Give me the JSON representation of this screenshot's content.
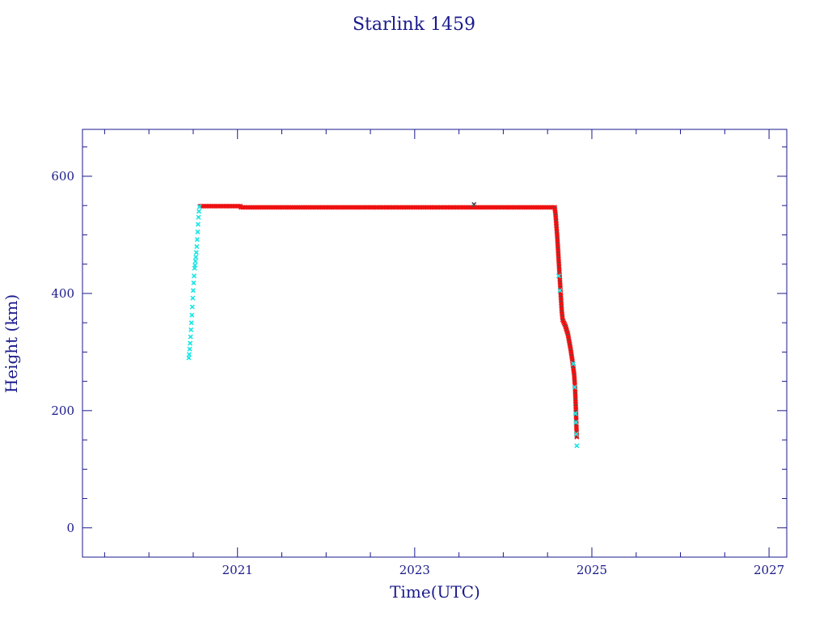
{
  "chart_data": {
    "type": "scatter",
    "title": "Starlink 1459",
    "xlabel": "Time(UTC)",
    "ylabel": "Height (km)",
    "xlim": [
      2019.25,
      2027.2
    ],
    "ylim": [
      -50,
      680
    ],
    "x_ticks": [
      2021,
      2023,
      2025,
      2027
    ],
    "y_ticks": [
      0,
      200,
      400,
      600
    ],
    "grid": false,
    "legend": "none",
    "colors": {
      "frame": "#1a1a8c",
      "text": "#1a1a8c",
      "raising": "#22e6e6",
      "operational": "#ee1111",
      "cross_marks": "#555555"
    },
    "series": [
      {
        "color": "#22e6e6",
        "points": [
          [
            2020.45,
            290
          ],
          [
            2020.455,
            296
          ],
          [
            2020.46,
            305
          ],
          [
            2020.465,
            315
          ],
          [
            2020.47,
            326
          ],
          [
            2020.475,
            338
          ],
          [
            2020.48,
            350
          ],
          [
            2020.485,
            363
          ],
          [
            2020.49,
            377
          ],
          [
            2020.495,
            392
          ],
          [
            2020.5,
            405
          ],
          [
            2020.505,
            418
          ],
          [
            2020.51,
            430
          ],
          [
            2020.515,
            443
          ],
          [
            2020.52,
            448
          ],
          [
            2020.525,
            455
          ],
          [
            2020.53,
            462
          ],
          [
            2020.535,
            470
          ],
          [
            2020.54,
            480
          ],
          [
            2020.545,
            492
          ],
          [
            2020.55,
            505
          ],
          [
            2020.555,
            518
          ],
          [
            2020.56,
            530
          ],
          [
            2020.565,
            540
          ],
          [
            2020.57,
            548
          ],
          [
            2024.625,
            430
          ],
          [
            2024.64,
            405
          ],
          [
            2024.79,
            280
          ],
          [
            2024.805,
            240
          ],
          [
            2024.815,
            195
          ],
          [
            2024.82,
            180
          ],
          [
            2024.825,
            160
          ],
          [
            2024.83,
            140
          ]
        ]
      },
      {
        "color": "#ee1111",
        "segments": [
          [
            [
              2020.58,
              549
            ],
            [
              2021.03,
              549
            ],
            [
              2021.04,
              547
            ],
            [
              2024.58,
              547
            ]
          ],
          [
            [
              2024.58,
              547
            ],
            [
              2024.59,
              535
            ],
            [
              2024.6,
              515
            ],
            [
              2024.61,
              495
            ],
            [
              2024.62,
              470
            ],
            [
              2024.63,
              445
            ],
            [
              2024.64,
              420
            ],
            [
              2024.65,
              395
            ],
            [
              2024.66,
              370
            ],
            [
              2024.67,
              355
            ],
            [
              2024.7,
              345
            ],
            [
              2024.73,
              330
            ],
            [
              2024.76,
              305
            ],
            [
              2024.78,
              285
            ],
            [
              2024.8,
              262
            ],
            [
              2024.81,
              240
            ],
            [
              2024.815,
              220
            ],
            [
              2024.82,
              200
            ],
            [
              2024.825,
              175
            ],
            [
              2024.83,
              155
            ]
          ]
        ],
        "extra_points": [
          [
            2023.67,
            552
          ]
        ]
      }
    ]
  }
}
